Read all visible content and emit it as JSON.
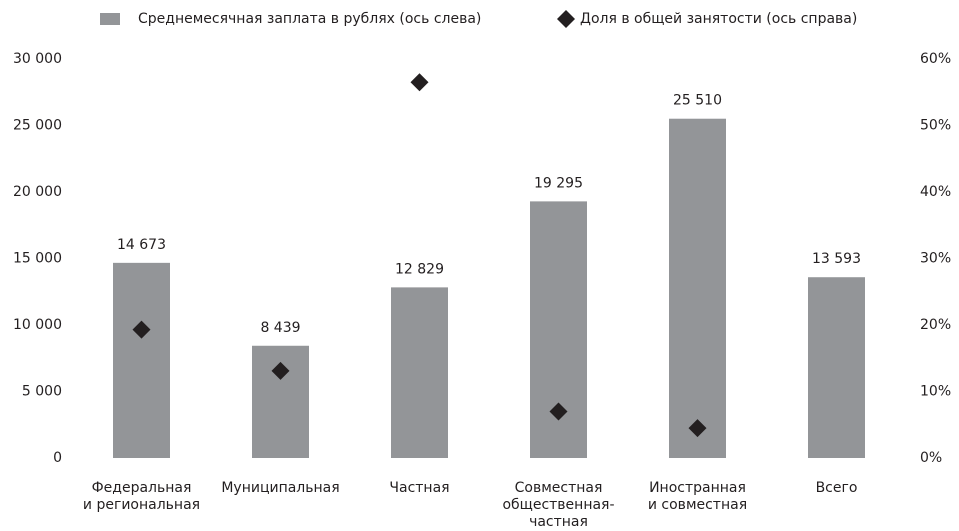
{
  "chart_data": {
    "type": "bar",
    "categories": [
      [
        "Федеральная",
        "и региональная"
      ],
      [
        "Муниципальная"
      ],
      [
        "Частная"
      ],
      [
        "Совместная",
        "общественная-",
        "частная"
      ],
      [
        "Иностранная",
        "и совместная"
      ],
      [
        "Всего"
      ]
    ],
    "series": [
      {
        "name": "Среднемесячная заплата в рублях (ось слева)",
        "type": "bar",
        "color": "#939598",
        "values": [
          14673,
          8439,
          12829,
          19295,
          25510,
          13593
        ],
        "value_labels": [
          "14 673",
          "8 439",
          "12 829",
          "19 295",
          "25 510",
          "13 593"
        ]
      },
      {
        "name": "Доля в общей занятости (ось справа)",
        "type": "scatter",
        "axis": "y2",
        "color": "#231f20",
        "values": [
          19.3,
          13.1,
          56.5,
          7.0,
          4.5,
          null
        ]
      }
    ],
    "ylim": [
      0,
      30000
    ],
    "yticks": [
      0,
      {
        "value": 5000,
        "label": "5 000"
      },
      {
        "value": 10000,
        "label": "10 000"
      },
      {
        "value": 15000,
        "label": "15 000"
      },
      {
        "value": 20000,
        "label": "20 000"
      },
      {
        "value": 25000,
        "label": "25 000"
      },
      {
        "value": 30000,
        "label": "30 000"
      }
    ],
    "y2lim": [
      0,
      60
    ],
    "y2ticks": [
      {
        "value": 0,
        "label": "0%"
      },
      {
        "value": 10,
        "label": "10%"
      },
      {
        "value": 20,
        "label": "20%"
      },
      {
        "value": 30,
        "label": "30%"
      },
      {
        "value": 40,
        "label": "40%"
      },
      {
        "value": 50,
        "label": "50%"
      },
      {
        "value": 60,
        "label": "60%"
      }
    ],
    "legend": "top"
  }
}
